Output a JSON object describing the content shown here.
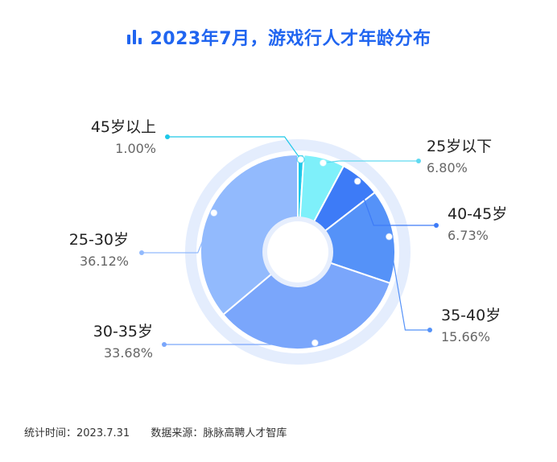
{
  "title": "2023年7月，游戏行人才年龄分布",
  "footer": {
    "time_stat": "统计时间：2023.7.31",
    "source": "数据来源：脉脉高聘人才智库"
  },
  "chart_data": {
    "type": "pie",
    "title": "2023年7月，游戏行人才年龄分布",
    "slices": [
      {
        "label": "45岁以上",
        "value": 1.0,
        "value_label": "1.00%",
        "color": "#1ec8e8",
        "label_side": "left"
      },
      {
        "label": "25岁以下",
        "value": 6.8,
        "value_label": "6.80%",
        "color": "#7ef0fa",
        "label_side": "right"
      },
      {
        "label": "40-45岁",
        "value": 6.73,
        "value_label": "6.73%",
        "color": "#3d7bf7",
        "label_side": "right"
      },
      {
        "label": "35-40岁",
        "value": 15.66,
        "value_label": "15.66%",
        "color": "#5592f8",
        "label_side": "right"
      },
      {
        "label": "30-35岁",
        "value": 33.68,
        "value_label": "33.68%",
        "color": "#7aa6fb",
        "label_side": "left"
      },
      {
        "label": "25-30岁",
        "value": 36.12,
        "value_label": "36.12%",
        "color": "#92bafd",
        "label_side": "left"
      }
    ],
    "inner_hole": true,
    "legend": "none"
  }
}
